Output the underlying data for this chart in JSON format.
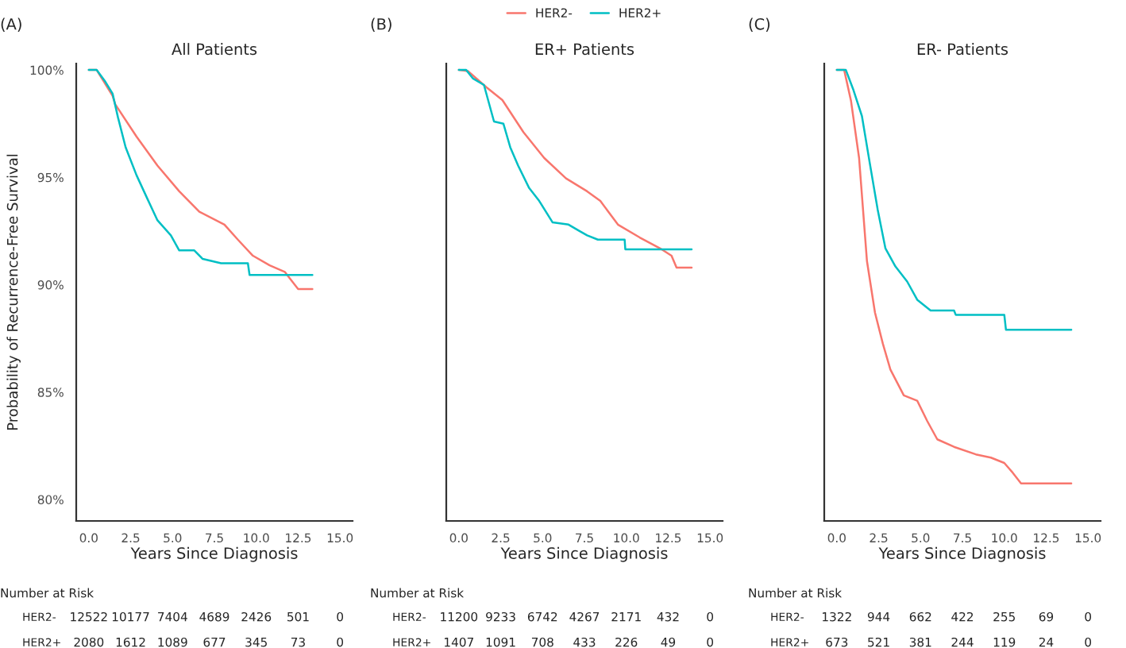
{
  "chart_data": [
    {
      "type": "line",
      "subtitle": "(A)",
      "title": "All Patients",
      "xlabel": "Years Since Diagnosis",
      "ylabel": "Probability of Recurrence-Free Survival",
      "legend": false,
      "grid": false,
      "xlim": [
        -0.75,
        15.75
      ],
      "xticks": [
        {
          "value": 0,
          "label": "0.0"
        },
        {
          "value": 2.5,
          "label": "2.5"
        },
        {
          "value": 5,
          "label": "5.0"
        },
        {
          "value": 7.5,
          "label": "7.5"
        },
        {
          "value": 10,
          "label": "10.0"
        },
        {
          "value": 12.5,
          "label": "12.5"
        },
        {
          "value": 15,
          "label": "15.0"
        }
      ],
      "ylim": [
        79.0,
        100.3
      ],
      "yticks": [
        {
          "value": 80,
          "label": "80%"
        },
        {
          "value": 85,
          "label": "85%"
        },
        {
          "value": 90,
          "label": "90%"
        },
        {
          "value": 95,
          "label": "95%"
        },
        {
          "value": 100,
          "label": "100%"
        }
      ],
      "series": [
        {
          "color": "#f8766d",
          "x": [
            0,
            0.47,
            1.42,
            1.58,
            2.85,
            4.1,
            5.4,
            6.6,
            8.1,
            8.9,
            9.8,
            10.8,
            11.7,
            12.0,
            12.5,
            13.35
          ],
          "values": [
            100,
            100,
            98.8,
            98.4,
            96.9,
            95.55,
            94.35,
            93.4,
            92.8,
            92.1,
            91.35,
            90.9,
            90.6,
            90.3,
            89.8,
            89.8
          ]
        },
        {
          "color": "#00bfc4",
          "x": [
            0,
            0.47,
            0.95,
            1.42,
            1.74,
            2.2,
            2.85,
            3.5,
            4.1,
            4.9,
            5.4,
            6.3,
            6.8,
            7.9,
            9.5,
            9.6,
            13.35
          ],
          "values": [
            100,
            100,
            99.5,
            98.9,
            97.8,
            96.4,
            95.1,
            94.0,
            93.0,
            92.3,
            91.6,
            91.6,
            91.2,
            91.0,
            91.0,
            90.45,
            90.45
          ]
        }
      ],
      "annotations": [
        "Number at Risk",
        "HER2-",
        "12522",
        "10177",
        "7404",
        "4689",
        "2426",
        "501",
        "0",
        "HER2+",
        "2080",
        "1612",
        "1089",
        "677",
        "345",
        "73",
        "0"
      ]
    },
    {
      "type": "line",
      "subtitle": "(B)",
      "title": "ER+ Patients",
      "xlabel": "Years Since Diagnosis",
      "legend": "top",
      "grid": false,
      "tick_labels": "x",
      "xlim": [
        -0.75,
        15.75
      ],
      "xticks": [
        {
          "value": 0,
          "label": "0.0"
        },
        {
          "value": 2.5,
          "label": "2.5"
        },
        {
          "value": 5,
          "label": "5.0"
        },
        {
          "value": 7.5,
          "label": "7.5"
        },
        {
          "value": 10,
          "label": "10.0"
        },
        {
          "value": 12.5,
          "label": "12.5"
        },
        {
          "value": 15,
          "label": "15.0"
        }
      ],
      "ylim": [
        79.0,
        100.3
      ],
      "yticks": [
        {
          "value": 80,
          "label": null
        },
        {
          "value": 85,
          "label": null
        },
        {
          "value": 90,
          "label": null
        },
        {
          "value": 95,
          "label": null
        },
        {
          "value": 100,
          "label": null
        }
      ],
      "series": [
        {
          "name": "HER2-",
          "color": "#f8766d",
          "x": [
            0,
            0.54,
            1.64,
            2.6,
            3.86,
            5.1,
            6.4,
            7.66,
            8.45,
            9.5,
            10.8,
            12.0,
            12.7,
            13.0,
            13.9
          ],
          "values": [
            100,
            99.95,
            99.2,
            98.6,
            97.1,
            95.9,
            94.95,
            94.35,
            93.9,
            92.8,
            92.2,
            91.7,
            91.35,
            90.8,
            90.8
          ]
        },
        {
          "name": "HER2+",
          "color": "#00bfc4",
          "x": [
            0,
            0.44,
            0.85,
            1.5,
            2.1,
            2.66,
            3.07,
            3.54,
            4.2,
            4.8,
            5.6,
            6.55,
            7.2,
            7.66,
            8.3,
            9.9,
            9.94,
            13.9
          ],
          "values": [
            100,
            100,
            99.6,
            99.3,
            97.6,
            97.5,
            96.4,
            95.55,
            94.5,
            93.9,
            92.9,
            92.8,
            92.5,
            92.3,
            92.1,
            92.1,
            91.65,
            91.65
          ]
        }
      ],
      "annotations": [
        "Number at Risk",
        "HER2-",
        "11200",
        "9233",
        "6742",
        "4267",
        "2171",
        "432",
        "0",
        "HER2+",
        "1407",
        "1091",
        "708",
        "433",
        "226",
        "49",
        "0"
      ]
    },
    {
      "type": "line",
      "subtitle": "(C)",
      "title": "ER- Patients",
      "xlabel": "Years Since Diagnosis",
      "legend": false,
      "grid": false,
      "tick_labels": "x",
      "xlim": [
        -0.75,
        15.75
      ],
      "xticks": [
        {
          "value": 0,
          "label": "0.0"
        },
        {
          "value": 2.5,
          "label": "2.5"
        },
        {
          "value": 5,
          "label": "5.0"
        },
        {
          "value": 7.5,
          "label": "7.5"
        },
        {
          "value": 10,
          "label": "10.0"
        },
        {
          "value": 12.5,
          "label": "12.5"
        },
        {
          "value": 15,
          "label": "15.0"
        }
      ],
      "ylim": [
        79.0,
        100.3
      ],
      "yticks": [
        {
          "value": 80,
          "label": null
        },
        {
          "value": 85,
          "label": null
        },
        {
          "value": 90,
          "label": null
        },
        {
          "value": 95,
          "label": null
        },
        {
          "value": 100,
          "label": null
        }
      ],
      "series": [
        {
          "color": "#f8766d",
          "x": [
            0,
            0.44,
            0.85,
            1.33,
            1.8,
            2.28,
            2.75,
            3.2,
            4.0,
            4.8,
            5.4,
            6.0,
            7.0,
            8.3,
            9.2,
            10.0,
            10.5,
            11.0,
            14.0
          ],
          "values": [
            100,
            100,
            98.55,
            95.9,
            91.1,
            88.7,
            87.25,
            86.05,
            84.85,
            84.6,
            83.65,
            82.8,
            82.45,
            82.1,
            81.95,
            81.7,
            81.25,
            80.75,
            80.75
          ]
        },
        {
          "color": "#00bfc4",
          "x": [
            0,
            0.54,
            1.0,
            1.5,
            1.96,
            2.44,
            2.9,
            3.5,
            4.2,
            4.8,
            5.6,
            7.0,
            7.1,
            10.0,
            10.1,
            14.0
          ],
          "values": [
            100,
            100,
            99.05,
            97.85,
            95.7,
            93.5,
            91.7,
            90.85,
            90.15,
            89.3,
            88.8,
            88.8,
            88.6,
            88.6,
            87.9,
            87.9
          ]
        }
      ],
      "annotations": [
        "Number at Risk",
        "HER2-",
        "1322",
        "944",
        "662",
        "422",
        "255",
        "69",
        "0",
        "HER2+",
        "673",
        "521",
        "381",
        "244",
        "119",
        "24",
        "0"
      ]
    }
  ]
}
